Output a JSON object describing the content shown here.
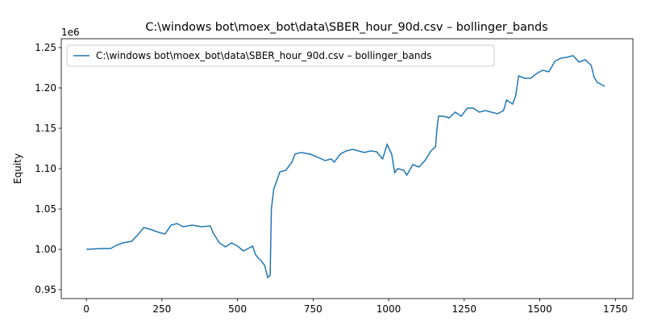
{
  "chart_data": {
    "type": "line",
    "title": "C:\\windows bot\\moex_bot\\data\\SBER_hour_90d.csv – bollinger_bands",
    "y_label": "Equity",
    "y_offset_label": "1e6",
    "legend": "upper left",
    "x": [
      0,
      50,
      80,
      100,
      120,
      150,
      170,
      190,
      210,
      240,
      260,
      280,
      300,
      320,
      350,
      380,
      410,
      420,
      440,
      460,
      480,
      500,
      520,
      550,
      560,
      580,
      590,
      600,
      608,
      612,
      620,
      630,
      640,
      660,
      680,
      690,
      710,
      740,
      760,
      790,
      810,
      820,
      840,
      860,
      880,
      900,
      920,
      940,
      960,
      980,
      995,
      1010,
      1020,
      1030,
      1050,
      1060,
      1080,
      1100,
      1120,
      1140,
      1155,
      1160,
      1165,
      1180,
      1200,
      1220,
      1240,
      1260,
      1280,
      1300,
      1320,
      1340,
      1360,
      1380,
      1390,
      1410,
      1420,
      1430,
      1450,
      1470,
      1490,
      1510,
      1530,
      1550,
      1570,
      1590,
      1610,
      1630,
      1650,
      1670,
      1680,
      1690,
      1700,
      1715
    ],
    "series": [
      {
        "name": "C:\\windows bot\\moex_bot\\data\\SBER_hour_90d.csv – bollinger_bands",
        "color": "#1f77b4",
        "values": [
          1.0,
          1.001,
          1.001,
          1.005,
          1.008,
          1.01,
          1.018,
          1.027,
          1.025,
          1.021,
          1.019,
          1.03,
          1.032,
          1.028,
          1.03,
          1.028,
          1.029,
          1.02,
          1.008,
          1.003,
          1.008,
          1.004,
          0.998,
          1.004,
          0.993,
          0.985,
          0.98,
          0.965,
          0.968,
          1.05,
          1.075,
          1.085,
          1.096,
          1.098,
          1.108,
          1.118,
          1.12,
          1.118,
          1.115,
          1.11,
          1.112,
          1.108,
          1.118,
          1.122,
          1.124,
          1.122,
          1.12,
          1.122,
          1.121,
          1.112,
          1.13,
          1.118,
          1.095,
          1.1,
          1.098,
          1.092,
          1.105,
          1.102,
          1.11,
          1.122,
          1.127,
          1.15,
          1.165,
          1.165,
          1.163,
          1.17,
          1.165,
          1.175,
          1.175,
          1.17,
          1.172,
          1.17,
          1.168,
          1.172,
          1.185,
          1.18,
          1.19,
          1.215,
          1.212,
          1.212,
          1.218,
          1.222,
          1.22,
          1.233,
          1.237,
          1.238,
          1.24,
          1.232,
          1.235,
          1.228,
          1.213,
          1.207,
          1.205,
          1.202
        ]
      }
    ],
    "xlim": [
      -83,
      1808
    ],
    "ylim": [
      0.939,
      1.261
    ],
    "xticks": [
      0,
      250,
      500,
      750,
      1000,
      1250,
      1500,
      1750
    ],
    "yticks": [
      0.95,
      {
        "value": 1,
        "label": "1.00"
      },
      1.05,
      {
        "value": 1.1,
        "label": "1.10"
      },
      1.15,
      {
        "value": 1.2,
        "label": "1.20"
      },
      1.25
    ]
  }
}
